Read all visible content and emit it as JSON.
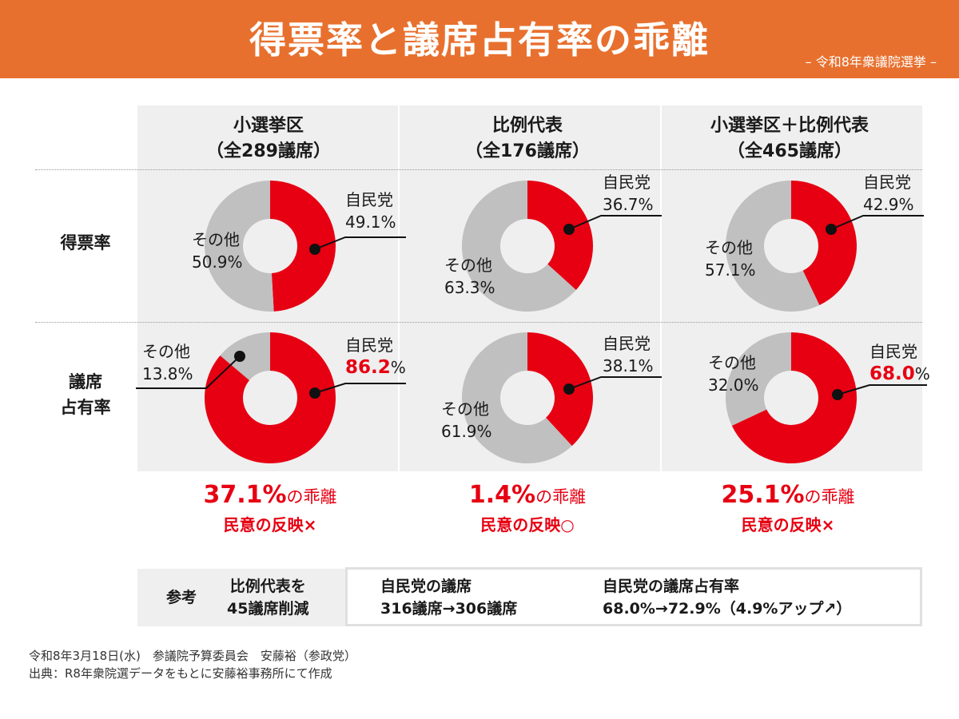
{
  "header": {
    "title": "得票率と議席占有率の乖離",
    "subtitle": "– 令和8年衆議院選挙 –"
  },
  "columns": [
    {
      "name": "小選挙区",
      "total": "（全289議席）"
    },
    {
      "name": "比例代表",
      "total": "（全176議席）"
    },
    {
      "name": "小選挙区＋比例代表",
      "total": "（全465議席）"
    }
  ],
  "rows": [
    {
      "label_1": "得票率",
      "label_2": ""
    },
    {
      "label_1": "議席",
      "label_2": "占有率"
    }
  ],
  "colors": {
    "ldp": "#e60012",
    "other": "#c0c0c0",
    "header": "#e8702e"
  },
  "chart_data": [
    {
      "type": "pie",
      "name": "小選挙区 得票率",
      "categories": [
        "自民党",
        "その他"
      ],
      "values": [
        49.1,
        50.9
      ]
    },
    {
      "type": "pie",
      "name": "比例代表 得票率",
      "categories": [
        "自民党",
        "その他"
      ],
      "values": [
        36.7,
        63.3
      ]
    },
    {
      "type": "pie",
      "name": "小選挙区＋比例代表 得票率",
      "categories": [
        "自民党",
        "その他"
      ],
      "values": [
        42.9,
        57.1
      ]
    },
    {
      "type": "pie",
      "name": "小選挙区 議席占有率",
      "categories": [
        "自民党",
        "その他"
      ],
      "values": [
        86.2,
        13.8
      ]
    },
    {
      "type": "pie",
      "name": "比例代表 議席占有率",
      "categories": [
        "自民党",
        "その他"
      ],
      "values": [
        38.1,
        61.9
      ]
    },
    {
      "type": "pie",
      "name": "小選挙区＋比例代表 議席占有率",
      "categories": [
        "自民党",
        "その他"
      ],
      "values": [
        68.0,
        32.0
      ]
    }
  ],
  "labels": {
    "ldp": "自民党",
    "other": "その他",
    "vote": [
      {
        "ldp": "49.1%",
        "other": "50.9%"
      },
      {
        "ldp": "36.7%",
        "other": "63.3%"
      },
      {
        "ldp": "42.9%",
        "other": "57.1%"
      }
    ],
    "seat": [
      {
        "ldp_num": "86.2",
        "ldp_pct": "%",
        "other": "13.8%"
      },
      {
        "ldp": "38.1%",
        "other": "61.9%"
      },
      {
        "ldp_num": "68.0",
        "ldp_pct": "%",
        "other": "32.0%"
      }
    ]
  },
  "results": [
    {
      "gap": "37.1%",
      "suffix": "の乖離",
      "reflect": "民意の反映×"
    },
    {
      "gap": "1.4%",
      "suffix": "の乖離",
      "reflect": "民意の反映○"
    },
    {
      "gap": "25.1%",
      "suffix": "の乖離",
      "reflect": "民意の反映×"
    }
  ],
  "reference": {
    "label": "参考",
    "action_1": "比例代表を",
    "action_2": "45議席削減",
    "seats_title": "自民党の議席",
    "seats_value": "316議席→306議席",
    "share_title": "自民党の議席占有率",
    "share_value": "68.0%→72.9%（4.9%アップ↗）"
  },
  "footer": {
    "line1": "令和8年3月18日(水)　参議院予算委員会　安藤裕（参政党）",
    "line2": "出典：R8年衆院選データをもとに安藤裕事務所にて作成"
  }
}
